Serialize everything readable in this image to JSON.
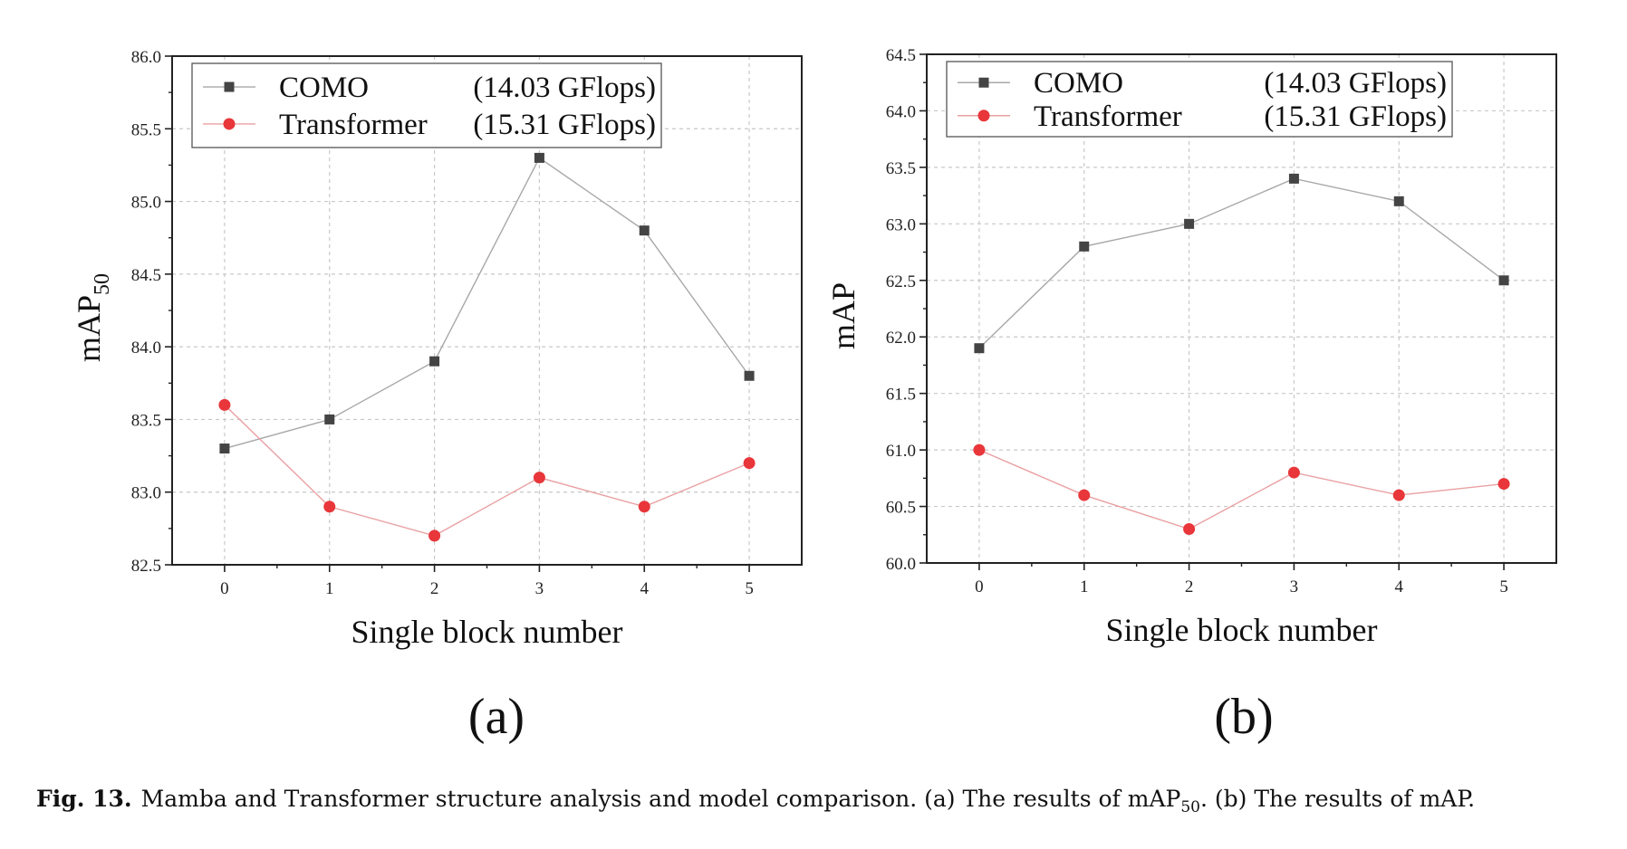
{
  "chart_data": [
    {
      "type": "line",
      "id": "a",
      "panel_label": "(a)",
      "xlabel": "Single block number",
      "ylabel": "mAP",
      "ylabel_sub": "50",
      "x": [
        0,
        1,
        2,
        3,
        4,
        5
      ],
      "xlim": [
        -0.5,
        5.5
      ],
      "ylim": [
        82.5,
        86.0
      ],
      "yticks": [
        "82.5",
        "83.0",
        "83.5",
        "84.0",
        "84.5",
        "85.0",
        "85.5",
        "86.0"
      ],
      "grid": true,
      "legend_position": "top-left",
      "series": [
        {
          "name": "COMO",
          "info": "(14.03 GFlops)",
          "marker": "square",
          "color": "#444444",
          "values": [
            83.3,
            83.5,
            83.9,
            85.3,
            84.8,
            83.8
          ]
        },
        {
          "name": "Transformer",
          "info": "(15.31 GFlops)",
          "marker": "circle",
          "color": "#e8363a",
          "values": [
            83.6,
            82.9,
            82.7,
            83.1,
            82.9,
            83.2
          ]
        }
      ]
    },
    {
      "type": "line",
      "id": "b",
      "panel_label": "(b)",
      "xlabel": "Single block number",
      "ylabel": "mAP",
      "ylabel_sub": "",
      "x": [
        0,
        1,
        2,
        3,
        4,
        5
      ],
      "xlim": [
        -0.5,
        5.5
      ],
      "ylim": [
        60.0,
        64.5
      ],
      "yticks": [
        "60.0",
        "60.5",
        "61.0",
        "61.5",
        "62.0",
        "62.5",
        "63.0",
        "63.5",
        "64.0",
        "64.5"
      ],
      "grid": true,
      "legend_position": "top-left",
      "series": [
        {
          "name": "COMO",
          "info": "(14.03 GFlops)",
          "marker": "square",
          "color": "#444444",
          "values": [
            61.9,
            62.8,
            63.0,
            63.4,
            63.2,
            62.5
          ]
        },
        {
          "name": "Transformer",
          "info": "(15.31 GFlops)",
          "marker": "circle",
          "color": "#e8363a",
          "values": [
            61.0,
            60.6,
            60.3,
            60.8,
            60.6,
            60.7
          ]
        }
      ]
    }
  ],
  "caption": {
    "label": "Fig. 13.",
    "text_1": "Mamba and Transformer structure analysis and model comparison. (a) The results of mAP",
    "sub_1": "50",
    "text_2": ". (b) The results of mAP."
  }
}
